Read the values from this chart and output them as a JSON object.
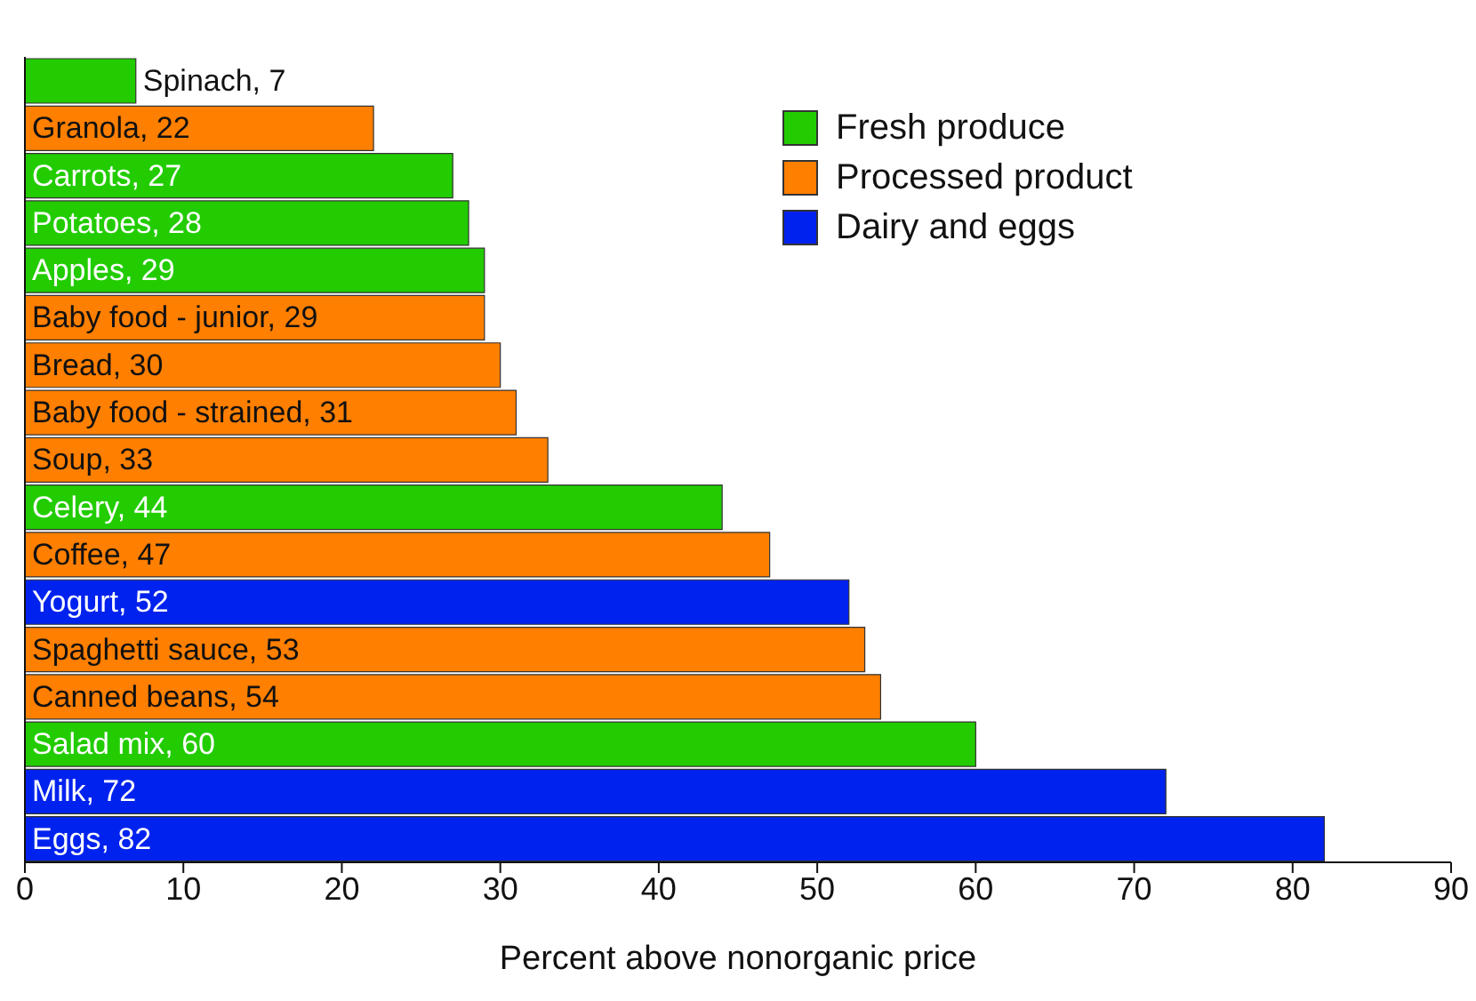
{
  "chart_data": {
    "type": "bar",
    "orientation": "horizontal",
    "stacked": true,
    "xlabel": "Percent above nonorganic price",
    "categories": [
      null,
      null,
      null,
      null,
      null,
      null,
      null,
      null,
      null,
      null,
      null,
      null,
      null,
      null,
      null,
      null,
      null
    ],
    "series": [
      {
        "name": "Fresh produce",
        "color": "#22cc00",
        "values": [
          7,
          null,
          27,
          28,
          29,
          null,
          null,
          null,
          null,
          44,
          null,
          null,
          null,
          null,
          60,
          null,
          null
        ],
        "value_labels": [
          "Spinach, 7",
          null,
          "Carrots, 27",
          "Potatoes, 28",
          "Apples, 29",
          null,
          null,
          null,
          null,
          "Celery, 44",
          null,
          null,
          null,
          null,
          "Salad mix, 60",
          null,
          null
        ]
      },
      {
        "name": "Processed product",
        "color": "#ff7f00",
        "values": [
          null,
          22,
          null,
          null,
          null,
          29,
          30,
          31,
          33,
          null,
          47,
          null,
          53,
          54,
          null,
          null,
          null
        ],
        "value_labels": [
          null,
          "Granola, 22",
          null,
          null,
          null,
          "Baby food - junior, 29",
          "Bread, 30",
          "Baby food - strained, 31",
          "Soup, 33",
          null,
          "Coffee, 47",
          null,
          "Spaghetti sauce, 53",
          "Canned beans, 54",
          null,
          null,
          null
        ]
      },
      {
        "name": "Dairy and eggs",
        "color": "#0022ee",
        "values": [
          null,
          null,
          null,
          null,
          null,
          null,
          null,
          null,
          null,
          null,
          null,
          52,
          null,
          null,
          null,
          72,
          82
        ],
        "value_labels": [
          null,
          null,
          null,
          null,
          null,
          null,
          null,
          null,
          null,
          null,
          null,
          "Yogurt, 52",
          null,
          null,
          null,
          "Milk, 72",
          "Eggs, 82"
        ]
      }
    ],
    "xlim": [
      0,
      90
    ],
    "xticks": [
      0,
      10,
      20,
      30,
      40,
      50,
      60,
      70,
      80,
      90
    ],
    "grid": false,
    "legend": "top right"
  }
}
